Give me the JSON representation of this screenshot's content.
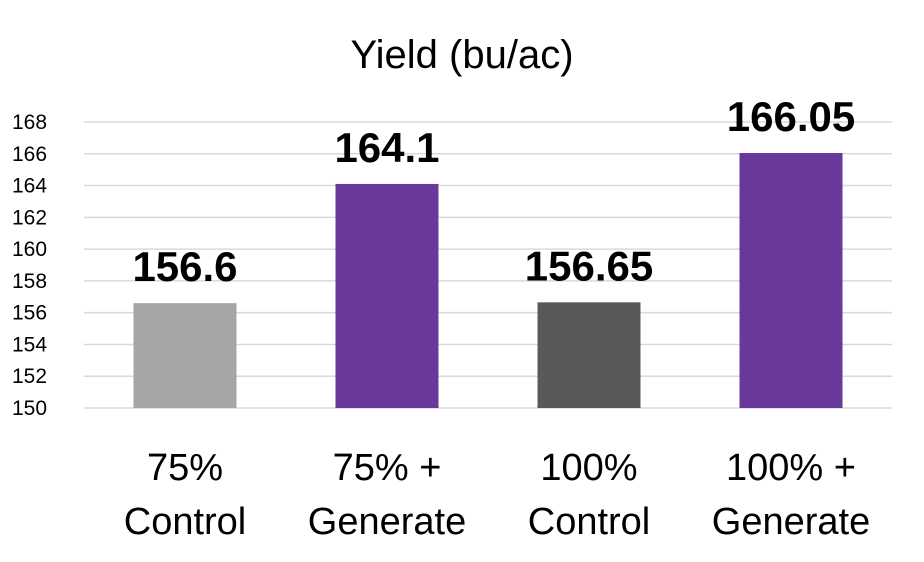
{
  "chart_data": {
    "type": "bar",
    "title": "Yield (bu/ac)",
    "categories": [
      [
        "75%",
        "Control"
      ],
      [
        "75% +",
        "Generate"
      ],
      [
        "100%",
        "Control"
      ],
      [
        "100% +",
        "Generate"
      ]
    ],
    "values": [
      156.6,
      164.1,
      156.65,
      166.05
    ],
    "data_labels": [
      "156.6",
      "164.1",
      "156.65",
      "166.05"
    ],
    "bar_colors": [
      "#a6a6a6",
      "#68389a",
      "#595959",
      "#68389a"
    ],
    "ylim": [
      150,
      168
    ],
    "yticks": [
      150,
      152,
      154,
      156,
      158,
      160,
      162,
      164,
      166,
      168
    ],
    "grid": true,
    "legend": "none"
  }
}
